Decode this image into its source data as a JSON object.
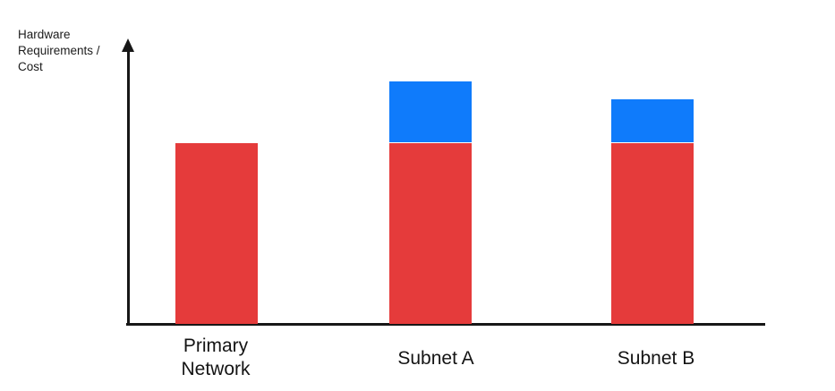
{
  "chart_data": {
    "type": "bar",
    "stacked": true,
    "title": "",
    "xlabel": "",
    "ylabel": "Hardware Requirements / Cost",
    "categories": [
      "Primary Network",
      "Subnet A",
      "Subnet B"
    ],
    "series": [
      {
        "name": "base-red-segment",
        "color": "#E53B3B",
        "values": [
          100,
          100,
          100
        ]
      },
      {
        "name": "overhead-blue-segment",
        "color": "#0F7BFB",
        "values": [
          0,
          34,
          24
        ]
      }
    ],
    "ylim": [
      0,
      158
    ],
    "value_ticks_shown": false,
    "grid": false,
    "legend_position": "none",
    "axis_color": "#171717"
  }
}
